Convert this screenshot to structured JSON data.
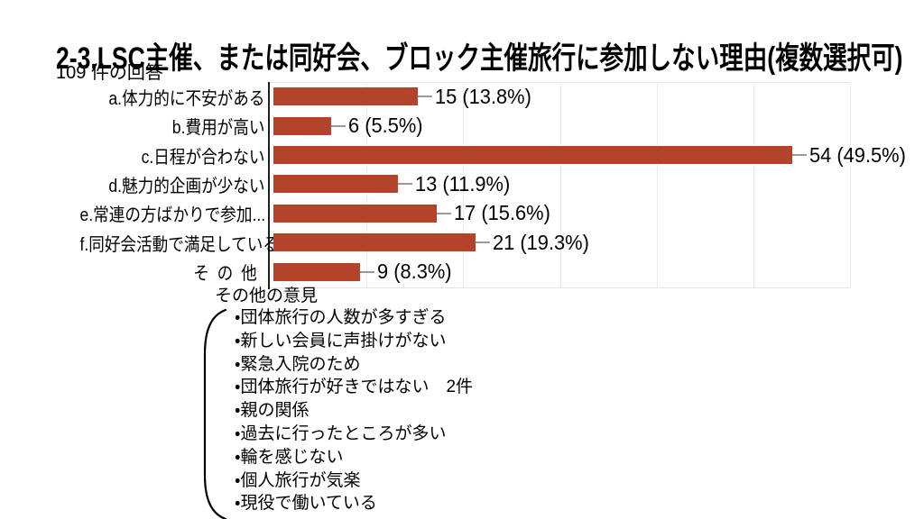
{
  "chart_data": {
    "type": "bar",
    "orientation": "horizontal",
    "title": "2-3.LSC主催、または同好会、ブロック主催旅行に参加しない理由(複数選択可)",
    "subtitle": "109 件の回答",
    "categories": [
      "a.体力的に不安がある",
      "b.費用が高い",
      "c.日程が合わない",
      "d.魅力的企画が少ない",
      "e.常連の方ばかりで参加...",
      "f.同好会活動で満足している",
      "その他"
    ],
    "values": [
      15,
      6,
      54,
      13,
      17,
      21,
      9
    ],
    "percentages": [
      13.8,
      5.5,
      49.5,
      11.9,
      15.6,
      19.3,
      8.3
    ],
    "value_labels": [
      "15 (13.8%)",
      "6 (5.5%)",
      "54 (49.5%)",
      "13 (11.9%)",
      "17 (15.6%)",
      "21 (19.3%)",
      "9 (8.3%)"
    ],
    "xlim": [
      0,
      60
    ],
    "gridline_step": 10,
    "grid": true,
    "legend": false,
    "bar_color": "#b4432c",
    "spaced_category": "その他"
  },
  "other_opinions": {
    "heading": "その他の意見",
    "items": [
      "・団体旅行の人数が多すぎる",
      "・新しい会員に声掛けがない",
      "・緊急入院のため",
      "・団体旅行が好きではない　2件",
      "・親の関係",
      "・過去に行ったところが多い",
      "・輪を感じない",
      "・個人旅行が気楽",
      "・現役で働いている"
    ]
  }
}
